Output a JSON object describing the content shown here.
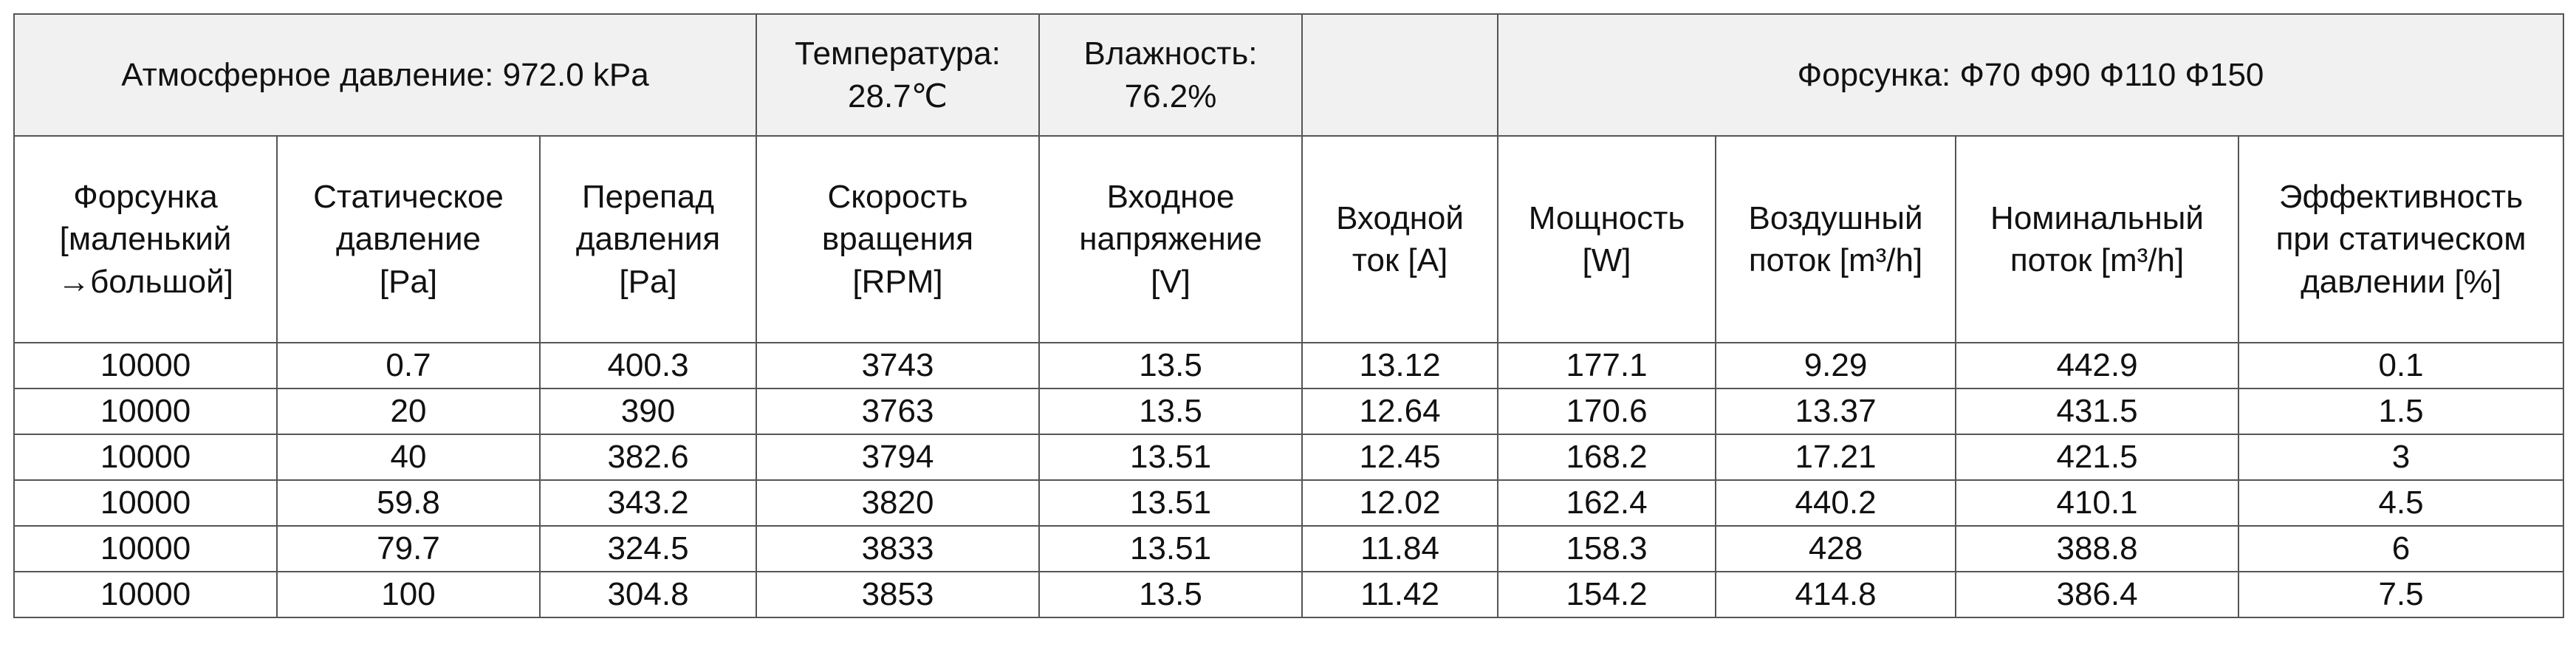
{
  "header": {
    "pressure": "Атмосферное давление: 972.0 kPa",
    "temperature": "Температура:\n28.7℃",
    "humidity": "Влажность:\n76.2%",
    "nozzle": "Форсунка: Ф70 Ф90 Ф110 Ф150"
  },
  "table": {
    "columns": [
      "Форсунка\n[маленький\n→большой]",
      "Статическое\nдавление\n[Pa]",
      "Перепад\nдавления\n[Pa]",
      "Скорость\nвращения\n[RPM]",
      "Входное\nнапряжение\n[V]",
      "Входной\nток [A]",
      "Мощность\n[W]",
      "Воздушный\nпоток [m³/h]",
      "Номинальный\nпоток [m³/h]",
      "Эффективность\nпри статическом\nдавлении [%]"
    ],
    "rows": [
      [
        10000,
        0.7,
        400.3,
        3743,
        13.5,
        13.12,
        177.1,
        9.29,
        442.9,
        0.1
      ],
      [
        10000,
        20,
        390,
        3763,
        13.5,
        12.64,
        170.6,
        13.37,
        431.5,
        1.5
      ],
      [
        10000,
        40,
        382.6,
        3794,
        13.51,
        12.45,
        168.2,
        17.21,
        421.5,
        3
      ],
      [
        10000,
        59.8,
        343.2,
        3820,
        13.51,
        12.02,
        162.4,
        440.2,
        410.1,
        4.5
      ],
      [
        10000,
        79.7,
        324.5,
        3833,
        13.51,
        11.84,
        158.3,
        428,
        388.8,
        6
      ],
      [
        10000,
        100,
        304.8,
        3853,
        13.5,
        11.42,
        154.2,
        414.8,
        386.4,
        7.5
      ]
    ]
  }
}
